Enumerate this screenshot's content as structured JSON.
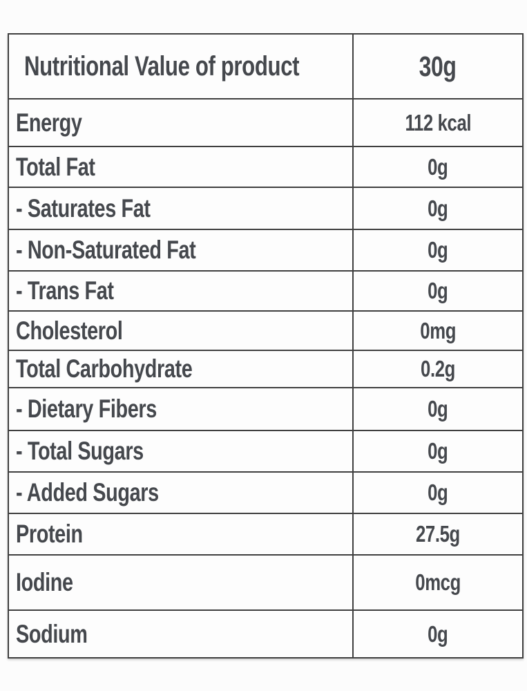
{
  "table": {
    "header": {
      "label": "Nutritional Value of product",
      "value": "30g"
    },
    "rows": [
      {
        "label": "Energy",
        "value": "112 kcal"
      },
      {
        "label": "Total Fat",
        "value": "0g"
      },
      {
        "label": "- Saturates Fat",
        "value": "0g"
      },
      {
        "label": "- Non-Saturated Fat",
        "value": "0g"
      },
      {
        "label": "- Trans Fat",
        "value": "0g"
      },
      {
        "label": "Cholesterol",
        "value": "0mg"
      },
      {
        "label": "Total Carbohydrate",
        "value": "0.2g"
      },
      {
        "label": "- Dietary Fibers",
        "value": "0g"
      },
      {
        "label": "- Total Sugars",
        "value": "0g"
      },
      {
        "label": "- Added Sugars",
        "value": "0g"
      },
      {
        "label": "Protein",
        "value": "27.5g"
      },
      {
        "label": "Iodine",
        "value": "0mcg"
      },
      {
        "label": "Sodium",
        "value": "0g"
      }
    ],
    "colors": {
      "text": "#45484d",
      "border": "#3f3f3f",
      "background": "#fdfdfd"
    }
  }
}
